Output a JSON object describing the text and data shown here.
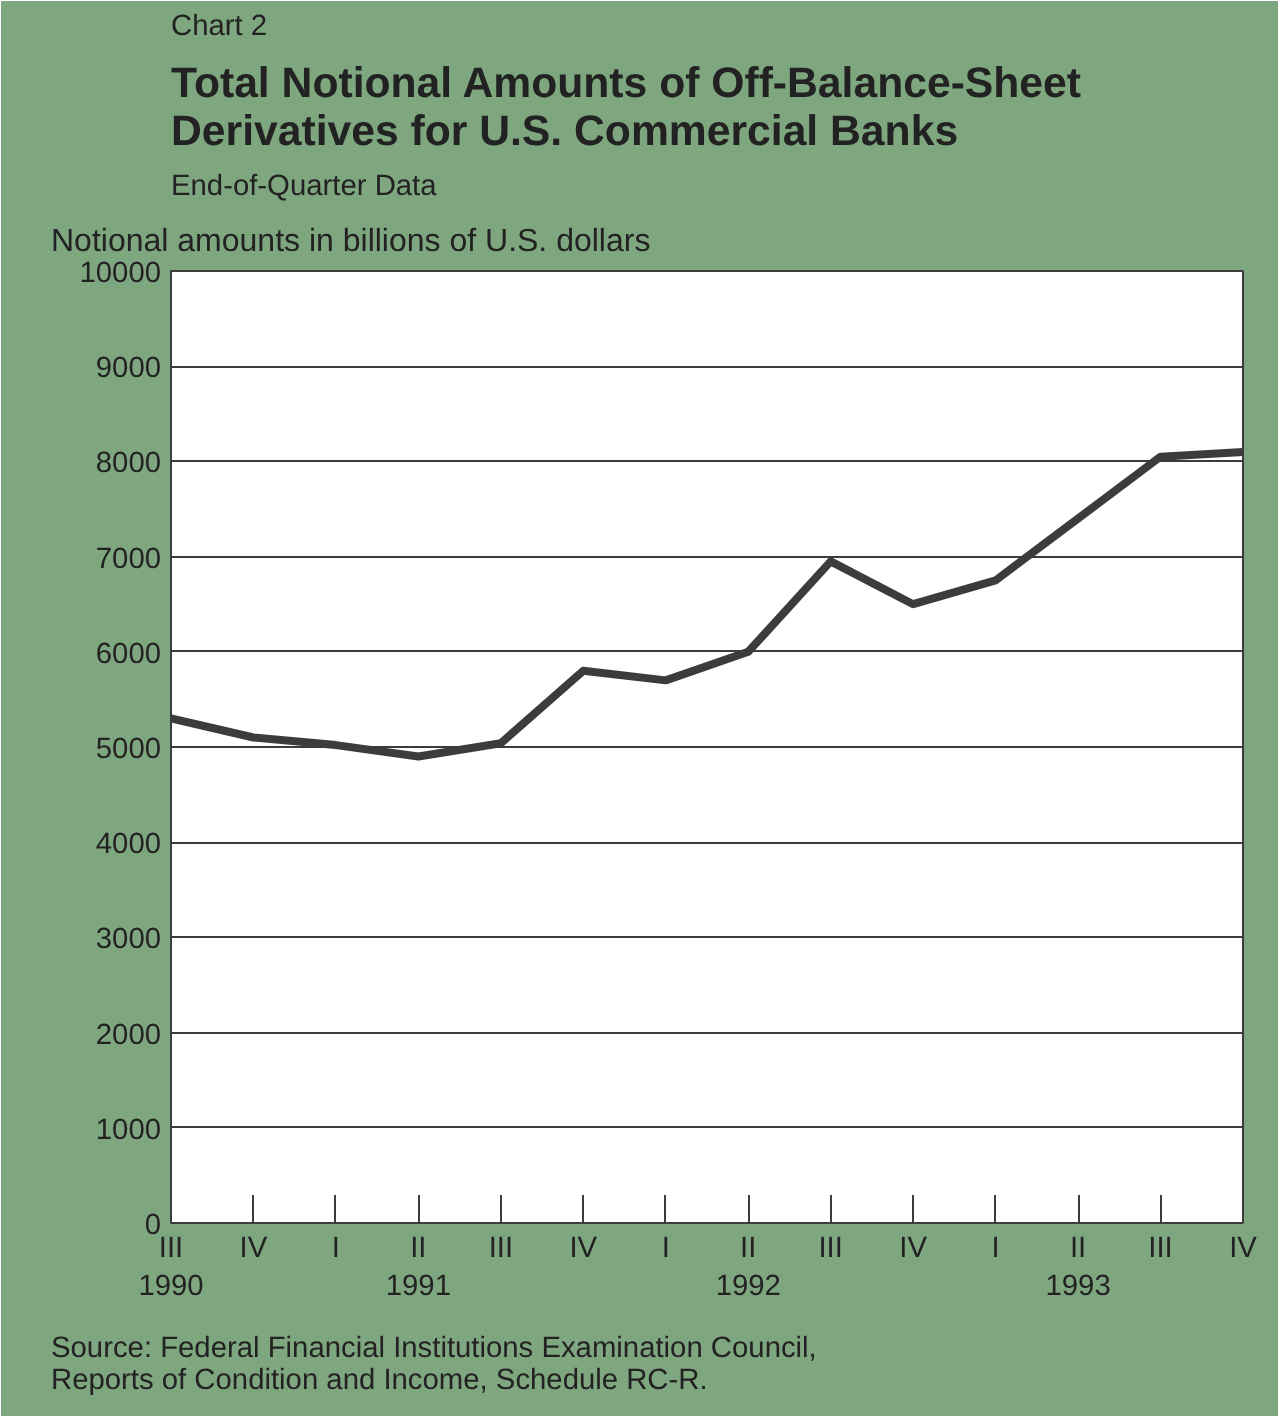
{
  "chart_data": {
    "type": "line",
    "title": "Total Notional Amounts of Off-Balance-Sheet Derivatives for U.S. Commercial Banks",
    "subtitle": "End-of-Quarter Data",
    "ylabel": "Notional amounts in billions of U.S. dollars",
    "annotations": [
      "Chart 2",
      "Source:  Federal Financial Institutions Examination Council, Reports of Condition and Income, Schedule RC-R."
    ],
    "categories": [
      "III\n1990",
      "IV",
      "I",
      "II\n1991",
      "III",
      "IV",
      "I",
      "II\n1992",
      "III",
      "IV",
      "I",
      "II\n1993",
      "III",
      "IV"
    ],
    "series": [
      {
        "color": "#3c3c3c",
        "values": [
          5300,
          5100,
          5020,
          4900,
          5040,
          5800,
          5700,
          6000,
          6950,
          6500,
          6750,
          7400,
          8050,
          8100
        ]
      }
    ],
    "ylim": [
      0,
      10000
    ],
    "yticks": [
      0,
      1000,
      2000,
      3000,
      4000,
      5000,
      6000,
      7000,
      8000,
      9000,
      10000
    ],
    "grid": "y",
    "marker": "none",
    "line_style": "solid"
  }
}
